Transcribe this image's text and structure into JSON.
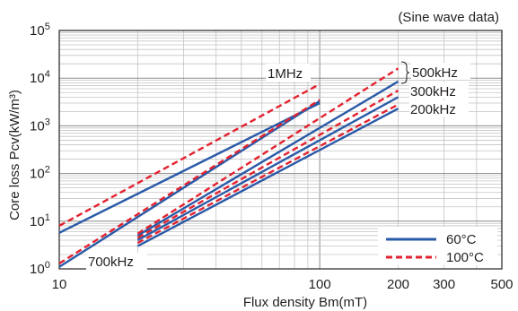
{
  "chart_data": {
    "type": "line",
    "title": "",
    "note": "(Sine wave data)",
    "xlabel": "Flux density Bm(mT)",
    "ylabel": "Core loss Pcv(kW/m³)",
    "x_scale": "log",
    "y_scale": "log",
    "xlim": [
      10,
      500
    ],
    "ylim": [
      1,
      100000
    ],
    "grid": true,
    "x_ticks": [
      {
        "value": 10,
        "label": "10"
      },
      {
        "value": 100,
        "label": "100"
      },
      {
        "value": 200,
        "label": "200"
      },
      {
        "value": 300,
        "label": "300"
      },
      {
        "value": 500,
        "label": "500"
      }
    ],
    "y_ticks": [
      {
        "value": 1,
        "base": "10",
        "exp": "0"
      },
      {
        "value": 10,
        "base": "10",
        "exp": "1"
      },
      {
        "value": 100,
        "base": "10",
        "exp": "2"
      },
      {
        "value": 1000,
        "base": "10",
        "exp": "3"
      },
      {
        "value": 10000,
        "base": "10",
        "exp": "4"
      },
      {
        "value": 100000,
        "base": "10",
        "exp": "5"
      }
    ],
    "legend": {
      "position": "bottom-right",
      "entries": [
        {
          "label": "60°C",
          "color": "#2a5aa7",
          "dash": "solid"
        },
        {
          "label": "100°C",
          "color": "#e3222f",
          "dash": "dashed"
        }
      ]
    },
    "series": [
      {
        "frequency": "1MHz",
        "temperature": "60°C",
        "style": "solid",
        "points": [
          [
            10,
            5.7
          ],
          [
            100,
            3000
          ]
        ]
      },
      {
        "frequency": "1MHz",
        "temperature": "100°C",
        "style": "dashed",
        "points": [
          [
            10,
            8.0
          ],
          [
            100,
            7500
          ]
        ]
      },
      {
        "frequency": "700kHz",
        "temperature": "60°C",
        "style": "solid",
        "points": [
          [
            10,
            1.1
          ],
          [
            100,
            3300
          ]
        ]
      },
      {
        "frequency": "700kHz",
        "temperature": "100°C",
        "style": "dashed",
        "points": [
          [
            10,
            1.3
          ],
          [
            100,
            3500
          ]
        ]
      },
      {
        "frequency": "500kHz",
        "temperature": "60°C",
        "style": "solid",
        "points": [
          [
            20,
            5.0
          ],
          [
            200,
            8500
          ]
        ]
      },
      {
        "frequency": "500kHz",
        "temperature": "100°C",
        "style": "dashed",
        "points": [
          [
            20,
            5.5
          ],
          [
            200,
            16000
          ]
        ]
      },
      {
        "frequency": "300kHz",
        "temperature": "60°C",
        "style": "solid",
        "points": [
          [
            20,
            4.0
          ],
          [
            200,
            4000
          ]
        ]
      },
      {
        "frequency": "300kHz",
        "temperature": "100°C",
        "style": "dashed",
        "points": [
          [
            20,
            4.5
          ],
          [
            200,
            5500
          ]
        ]
      },
      {
        "frequency": "200kHz",
        "temperature": "60°C",
        "style": "solid",
        "points": [
          [
            20,
            3.0
          ],
          [
            200,
            2300
          ]
        ]
      },
      {
        "frequency": "200kHz",
        "temperature": "100°C",
        "style": "dashed",
        "points": [
          [
            20,
            3.5
          ],
          [
            200,
            2800
          ]
        ]
      }
    ],
    "annotations": [
      "1MHz",
      "500kHz",
      "300kHz",
      "200kHz",
      "700kHz"
    ]
  }
}
